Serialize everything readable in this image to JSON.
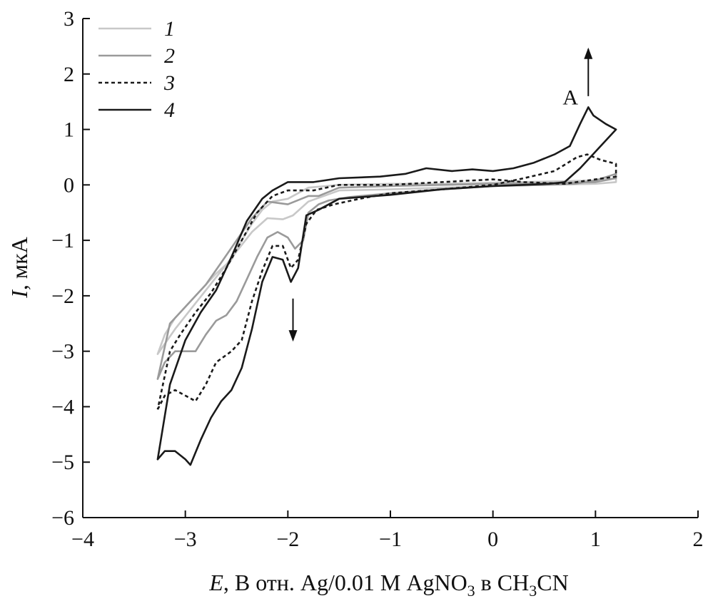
{
  "chart_data": {
    "type": "line",
    "title": "",
    "xlabel_italic": "E",
    "xlabel_unit": ", В отн. Ag/0.01 М AgNO",
    "xlabel_sub1": "3",
    "xlabel_mid": " в CH",
    "xlabel_sub2": "3",
    "xlabel_end": "CN",
    "ylabel_italic": "I",
    "ylabel_unit": ", мкА",
    "xlim": [
      -4,
      2
    ],
    "ylim": [
      -6,
      3
    ],
    "xticks": [
      -4,
      -3,
      -2,
      -1,
      0,
      1,
      2
    ],
    "yticks": [
      -6,
      -5,
      -4,
      -3,
      -2,
      -1,
      0,
      1,
      2,
      3
    ],
    "xtick_labels": [
      "−4",
      "−3",
      "−2",
      "−1",
      "0",
      "1",
      "2"
    ],
    "ytick_labels": [
      "−6",
      "−5",
      "−4",
      "−3",
      "−2",
      "−1",
      "0",
      "1",
      "2",
      "3"
    ],
    "grid": false,
    "legend_position": "top-left",
    "annotations": [
      {
        "text": "A",
        "x": 0.68,
        "y": 1.45
      },
      {
        "arrow": "up",
        "x": 0.93,
        "y_from": 1.6,
        "y_to": 2.45
      },
      {
        "arrow": "down",
        "x": -1.95,
        "y_from": -2.05,
        "y_to": -2.8
      }
    ],
    "series": [
      {
        "name": "1",
        "color": "#c8c8c8",
        "dash": "solid",
        "points": [
          [
            -3.27,
            -3.05
          ],
          [
            -3.2,
            -2.7
          ],
          [
            -3.1,
            -2.4
          ],
          [
            -3.0,
            -2.2
          ],
          [
            -2.85,
            -1.9
          ],
          [
            -2.7,
            -1.6
          ],
          [
            -2.55,
            -1.35
          ],
          [
            -2.45,
            -1.0
          ],
          [
            -2.35,
            -0.7
          ],
          [
            -2.25,
            -0.45
          ],
          [
            -2.15,
            -0.3
          ],
          [
            -2.0,
            -0.25
          ],
          [
            -1.9,
            -0.15
          ],
          [
            -1.8,
            -0.05
          ],
          [
            -1.5,
            0.0
          ],
          [
            -1.0,
            0.02
          ],
          [
            -0.5,
            0.02
          ],
          [
            0.0,
            0.04
          ],
          [
            0.5,
            0.06
          ],
          [
            1.0,
            0.08
          ],
          [
            1.2,
            0.12
          ],
          [
            1.2,
            0.05
          ],
          [
            1.0,
            0.02
          ],
          [
            0.5,
            0.0
          ],
          [
            0.0,
            -0.02
          ],
          [
            -0.5,
            -0.05
          ],
          [
            -1.0,
            -0.08
          ],
          [
            -1.5,
            -0.1
          ],
          [
            -1.8,
            -0.3
          ],
          [
            -1.95,
            -0.55
          ],
          [
            -2.05,
            -0.62
          ],
          [
            -2.2,
            -0.6
          ],
          [
            -2.35,
            -0.85
          ],
          [
            -2.5,
            -1.2
          ],
          [
            -2.65,
            -1.55
          ],
          [
            -2.8,
            -1.9
          ],
          [
            -2.95,
            -2.25
          ],
          [
            -3.1,
            -2.6
          ],
          [
            -3.27,
            -3.05
          ]
        ]
      },
      {
        "name": "2",
        "color": "#9a9a9a",
        "dash": "solid",
        "points": [
          [
            -3.27,
            -3.5
          ],
          [
            -3.2,
            -3.2
          ],
          [
            -3.1,
            -3.0
          ],
          [
            -3.0,
            -3.0
          ],
          [
            -2.9,
            -3.0
          ],
          [
            -2.8,
            -2.7
          ],
          [
            -2.7,
            -2.45
          ],
          [
            -2.6,
            -2.35
          ],
          [
            -2.5,
            -2.1
          ],
          [
            -2.4,
            -1.7
          ],
          [
            -2.3,
            -1.3
          ],
          [
            -2.2,
            -0.95
          ],
          [
            -2.1,
            -0.85
          ],
          [
            -2.0,
            -0.95
          ],
          [
            -1.93,
            -1.15
          ],
          [
            -1.85,
            -1.0
          ],
          [
            -1.8,
            -0.5
          ],
          [
            -1.7,
            -0.35
          ],
          [
            -1.6,
            -0.28
          ],
          [
            -1.4,
            -0.22
          ],
          [
            -1.0,
            -0.15
          ],
          [
            -0.5,
            -0.08
          ],
          [
            0.0,
            -0.02
          ],
          [
            0.5,
            0.0
          ],
          [
            0.8,
            0.02
          ],
          [
            1.0,
            0.08
          ],
          [
            1.2,
            0.2
          ],
          [
            1.2,
            0.12
          ],
          [
            1.0,
            0.05
          ],
          [
            0.5,
            0.03
          ],
          [
            0.0,
            0.02
          ],
          [
            -0.5,
            0.0
          ],
          [
            -1.0,
            -0.02
          ],
          [
            -1.5,
            -0.05
          ],
          [
            -1.7,
            -0.2
          ],
          [
            -1.8,
            -0.2
          ],
          [
            -2.0,
            -0.35
          ],
          [
            -2.2,
            -0.3
          ],
          [
            -2.35,
            -0.6
          ],
          [
            -2.5,
            -1.0
          ],
          [
            -2.65,
            -1.4
          ],
          [
            -2.8,
            -1.8
          ],
          [
            -3.0,
            -2.2
          ],
          [
            -3.15,
            -2.5
          ],
          [
            -3.27,
            -3.5
          ]
        ]
      },
      {
        "name": "3",
        "color": "#1a1a1a",
        "dash": "dotted",
        "points": [
          [
            -3.27,
            -4.05
          ],
          [
            -3.2,
            -3.8
          ],
          [
            -3.1,
            -3.7
          ],
          [
            -3.0,
            -3.8
          ],
          [
            -2.9,
            -3.9
          ],
          [
            -2.8,
            -3.6
          ],
          [
            -2.7,
            -3.2
          ],
          [
            -2.55,
            -3.0
          ],
          [
            -2.45,
            -2.8
          ],
          [
            -2.35,
            -2.1
          ],
          [
            -2.25,
            -1.55
          ],
          [
            -2.15,
            -1.1
          ],
          [
            -2.05,
            -1.1
          ],
          [
            -1.97,
            -1.5
          ],
          [
            -1.9,
            -1.35
          ],
          [
            -1.82,
            -0.7
          ],
          [
            -1.72,
            -0.45
          ],
          [
            -1.55,
            -0.35
          ],
          [
            -1.3,
            -0.25
          ],
          [
            -1.0,
            -0.15
          ],
          [
            -0.5,
            -0.08
          ],
          [
            0.0,
            0.0
          ],
          [
            0.3,
            0.12
          ],
          [
            0.6,
            0.25
          ],
          [
            0.82,
            0.5
          ],
          [
            0.92,
            0.55
          ],
          [
            1.05,
            0.45
          ],
          [
            1.2,
            0.38
          ],
          [
            1.2,
            0.15
          ],
          [
            1.0,
            0.1
          ],
          [
            0.7,
            0.02
          ],
          [
            0.3,
            0.05
          ],
          [
            0.0,
            0.1
          ],
          [
            -0.5,
            0.05
          ],
          [
            -1.0,
            0.0
          ],
          [
            -1.5,
            0.0
          ],
          [
            -1.75,
            -0.1
          ],
          [
            -2.0,
            -0.1
          ],
          [
            -2.15,
            -0.2
          ],
          [
            -2.3,
            -0.5
          ],
          [
            -2.45,
            -1.0
          ],
          [
            -2.6,
            -1.5
          ],
          [
            -2.75,
            -1.95
          ],
          [
            -2.9,
            -2.3
          ],
          [
            -3.05,
            -2.7
          ],
          [
            -3.15,
            -3.0
          ],
          [
            -3.27,
            -4.05
          ]
        ]
      },
      {
        "name": "4",
        "color": "#1a1a1a",
        "dash": "solid",
        "points": [
          [
            -3.27,
            -4.95
          ],
          [
            -3.2,
            -4.8
          ],
          [
            -3.1,
            -4.8
          ],
          [
            -3.0,
            -4.95
          ],
          [
            -2.95,
            -5.05
          ],
          [
            -2.85,
            -4.6
          ],
          [
            -2.75,
            -4.2
          ],
          [
            -2.65,
            -3.9
          ],
          [
            -2.55,
            -3.7
          ],
          [
            -2.45,
            -3.3
          ],
          [
            -2.35,
            -2.6
          ],
          [
            -2.25,
            -1.75
          ],
          [
            -2.15,
            -1.3
          ],
          [
            -2.05,
            -1.35
          ],
          [
            -1.97,
            -1.75
          ],
          [
            -1.9,
            -1.5
          ],
          [
            -1.82,
            -0.55
          ],
          [
            -1.7,
            -0.45
          ],
          [
            -1.5,
            -0.25
          ],
          [
            -1.0,
            -0.18
          ],
          [
            -0.5,
            -0.08
          ],
          [
            0.0,
            -0.02
          ],
          [
            0.3,
            0.0
          ],
          [
            0.55,
            0.02
          ],
          [
            0.7,
            0.05
          ],
          [
            0.85,
            0.3
          ],
          [
            1.0,
            0.6
          ],
          [
            1.2,
            1.0
          ],
          [
            1.1,
            1.1
          ],
          [
            0.98,
            1.25
          ],
          [
            0.93,
            1.4
          ],
          [
            0.85,
            1.1
          ],
          [
            0.75,
            0.7
          ],
          [
            0.6,
            0.55
          ],
          [
            0.4,
            0.4
          ],
          [
            0.2,
            0.3
          ],
          [
            0.0,
            0.25
          ],
          [
            -0.2,
            0.28
          ],
          [
            -0.4,
            0.25
          ],
          [
            -0.65,
            0.3
          ],
          [
            -0.85,
            0.2
          ],
          [
            -1.1,
            0.15
          ],
          [
            -1.5,
            0.12
          ],
          [
            -1.75,
            0.05
          ],
          [
            -2.0,
            0.05
          ],
          [
            -2.15,
            -0.1
          ],
          [
            -2.25,
            -0.25
          ],
          [
            -2.4,
            -0.65
          ],
          [
            -2.55,
            -1.3
          ],
          [
            -2.7,
            -1.9
          ],
          [
            -2.85,
            -2.3
          ],
          [
            -3.0,
            -2.8
          ],
          [
            -3.15,
            -3.6
          ],
          [
            -3.27,
            -4.95
          ]
        ]
      }
    ]
  }
}
